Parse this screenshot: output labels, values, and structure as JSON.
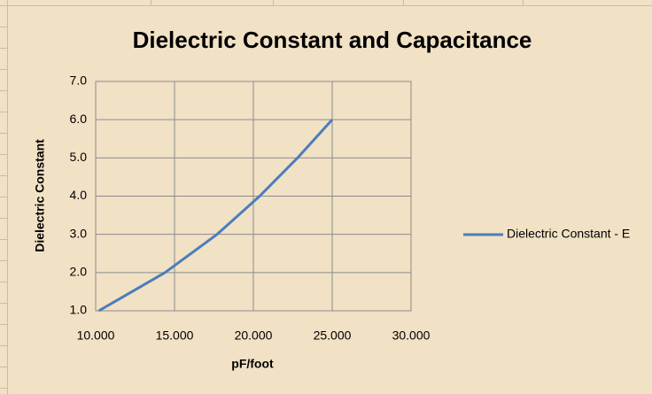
{
  "chart_data": {
    "type": "line",
    "title": "Dielectric Constant and Capacitance",
    "x_label": "pF/foot",
    "y_label": "Dielectric Constant",
    "series": [
      {
        "name": "Dielectric Constant - E",
        "color": "#4a7ebb",
        "x": [
          10.2,
          14.4,
          17.7,
          20.4,
          22.8,
          25
        ],
        "values": [
          1,
          2,
          3,
          4,
          5,
          6
        ]
      }
    ],
    "xlim": [
      10,
      30
    ],
    "xticks": [
      {
        "value": 10,
        "label": "10.000"
      },
      {
        "value": 15,
        "label": "15.000"
      },
      {
        "value": 20,
        "label": "20.000"
      },
      {
        "value": 25,
        "label": "25.000"
      },
      {
        "value": 30,
        "label": "30.000"
      }
    ],
    "ylim": [
      1,
      7
    ],
    "yticks": [
      {
        "value": 1,
        "label": "1.0"
      },
      {
        "value": 2,
        "label": "2.0"
      },
      {
        "value": 3,
        "label": "3.0"
      },
      {
        "value": 4,
        "label": "4.0"
      },
      {
        "value": 5,
        "label": "5.0"
      },
      {
        "value": 6,
        "label": "6.0"
      },
      {
        "value": 7,
        "label": "7.0"
      }
    ],
    "grid": true,
    "legend": "right"
  }
}
